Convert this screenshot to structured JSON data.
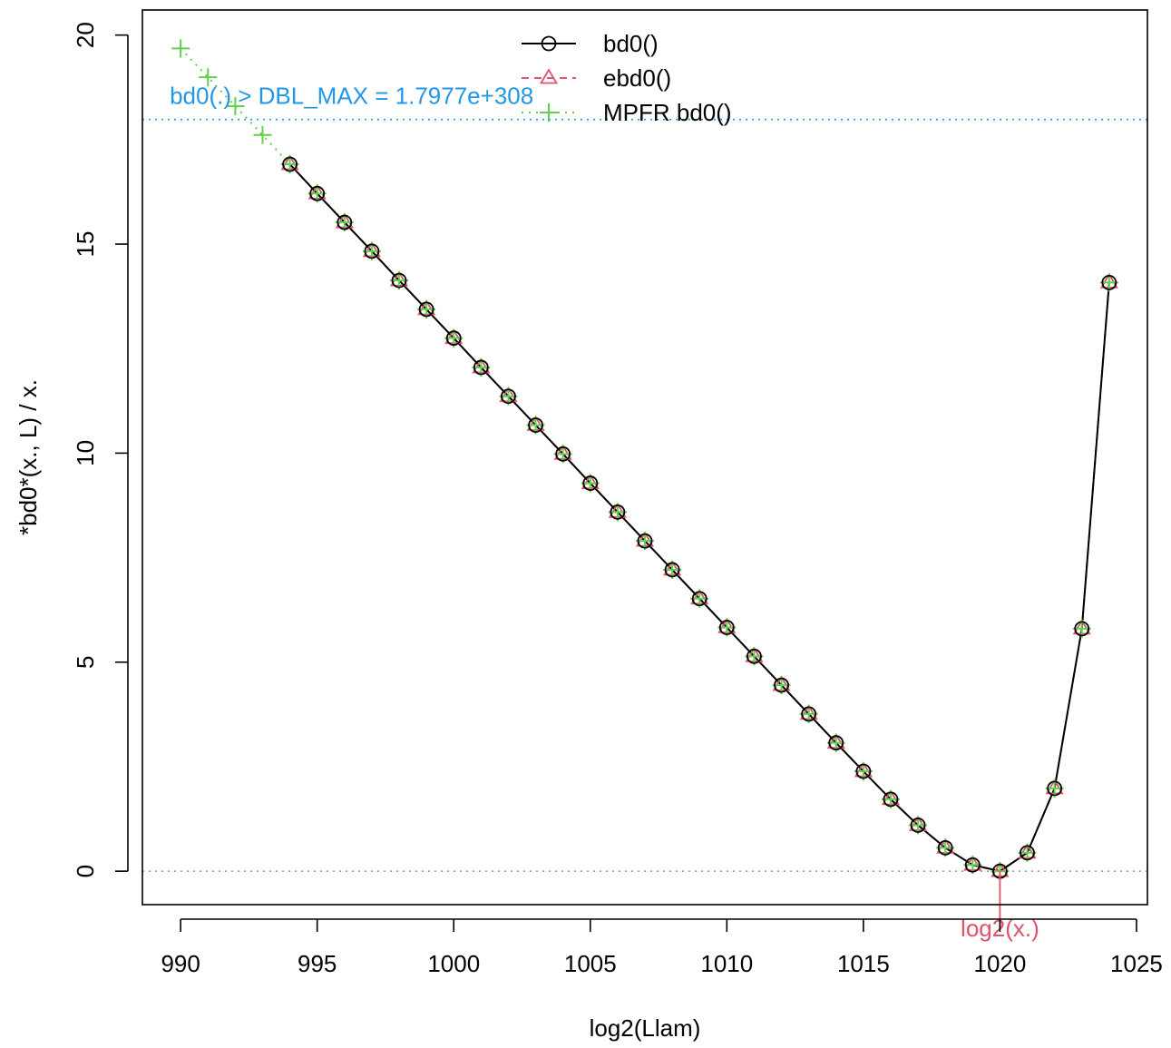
{
  "chart_data": {
    "type": "line",
    "xlabel": "log2(Llam)",
    "ylabel": "*bd0*(x., L) / x.",
    "xlim": [
      988.6,
      1025.4
    ],
    "ylim": [
      -0.8,
      20.6
    ],
    "x_ticks": [
      990,
      995,
      1000,
      1005,
      1010,
      1015,
      1020,
      1025
    ],
    "x_tick_labels": [
      "990",
      "995",
      "1000",
      "1005",
      "1010",
      "1015",
      "1020",
      "1025"
    ],
    "y_ticks": [
      0,
      5,
      10,
      15,
      20
    ],
    "y_tick_labels": [
      "0",
      "5",
      "10",
      "15",
      "20"
    ],
    "grid": false,
    "legend": {
      "position": "top-center",
      "entries": [
        {
          "label": "bd0()",
          "color": "#000000",
          "marker": "circle",
          "line": "solid"
        },
        {
          "label": "ebd0()",
          "color": "#DF536B",
          "marker": "triangle",
          "line": "dashed"
        },
        {
          "label": "MPFR bd0()",
          "color": "#61D04F",
          "marker": "plus",
          "line": "dotted"
        }
      ]
    },
    "series": [
      {
        "name": "bd0()",
        "color": "#000000",
        "x": [
          994,
          995,
          996,
          997,
          998,
          999,
          1000,
          1001,
          1002,
          1003,
          1004,
          1005,
          1006,
          1007,
          1008,
          1009,
          1010,
          1011,
          1012,
          1013,
          1014,
          1015,
          1016,
          1017,
          1018,
          1019,
          1020,
          1021,
          1022,
          1023,
          1024
        ],
        "values": [
          16.91,
          16.21,
          15.52,
          14.83,
          14.13,
          13.44,
          12.75,
          12.05,
          11.36,
          10.67,
          9.98,
          9.28,
          8.59,
          7.9,
          7.21,
          6.52,
          5.83,
          5.14,
          4.45,
          3.76,
          3.07,
          2.39,
          1.72,
          1.1,
          0.56,
          0.15,
          0.0,
          0.44,
          1.98,
          5.8,
          14.08
        ]
      },
      {
        "name": "ebd0()",
        "color": "#DF536B",
        "x": [
          994,
          995,
          996,
          997,
          998,
          999,
          1000,
          1001,
          1002,
          1003,
          1004,
          1005,
          1006,
          1007,
          1008,
          1009,
          1010,
          1011,
          1012,
          1013,
          1014,
          1015,
          1016,
          1017,
          1018,
          1019,
          1020,
          1021,
          1022,
          1023,
          1024
        ],
        "values": [
          16.91,
          16.21,
          15.52,
          14.83,
          14.13,
          13.44,
          12.75,
          12.05,
          11.36,
          10.67,
          9.98,
          9.28,
          8.59,
          7.9,
          7.21,
          6.52,
          5.83,
          5.14,
          4.45,
          3.76,
          3.07,
          2.39,
          1.72,
          1.1,
          0.56,
          0.15,
          0.0,
          0.44,
          1.98,
          5.8,
          14.08
        ]
      },
      {
        "name": "MPFR bd0()",
        "color": "#61D04F",
        "x": [
          990,
          991,
          992,
          993,
          994,
          995,
          996,
          997,
          998,
          999,
          1000,
          1001,
          1002,
          1003,
          1004,
          1005,
          1006,
          1007,
          1008,
          1009,
          1010,
          1011,
          1012,
          1013,
          1014,
          1015,
          1016,
          1017,
          1018,
          1019,
          1020,
          1021,
          1022,
          1023,
          1024
        ],
        "values": [
          19.68,
          18.99,
          18.3,
          17.61,
          16.91,
          16.21,
          15.52,
          14.83,
          14.13,
          13.44,
          12.75,
          12.05,
          11.36,
          10.67,
          9.98,
          9.28,
          8.59,
          7.9,
          7.21,
          6.52,
          5.83,
          5.14,
          4.45,
          3.76,
          3.07,
          2.39,
          1.72,
          1.1,
          0.56,
          0.15,
          0.0,
          0.44,
          1.98,
          5.8,
          14.08
        ]
      }
    ],
    "reference_lines": [
      {
        "axis": "y",
        "value": 0,
        "color": "#9E9E9E",
        "style": "dotted"
      },
      {
        "axis": "y",
        "value": 17.98,
        "color": "#2297E6",
        "style": "dotted"
      }
    ],
    "annotations": [
      {
        "text": "bd0(.) > DBL_MAX = 1.7977e+308",
        "color": "#2297E6",
        "x": 989.6,
        "y": 18.55
      },
      {
        "text": "log2(x.)",
        "color": "#DF536B",
        "x": 1020,
        "y": -1.3,
        "marker_x": 1020
      }
    ]
  }
}
